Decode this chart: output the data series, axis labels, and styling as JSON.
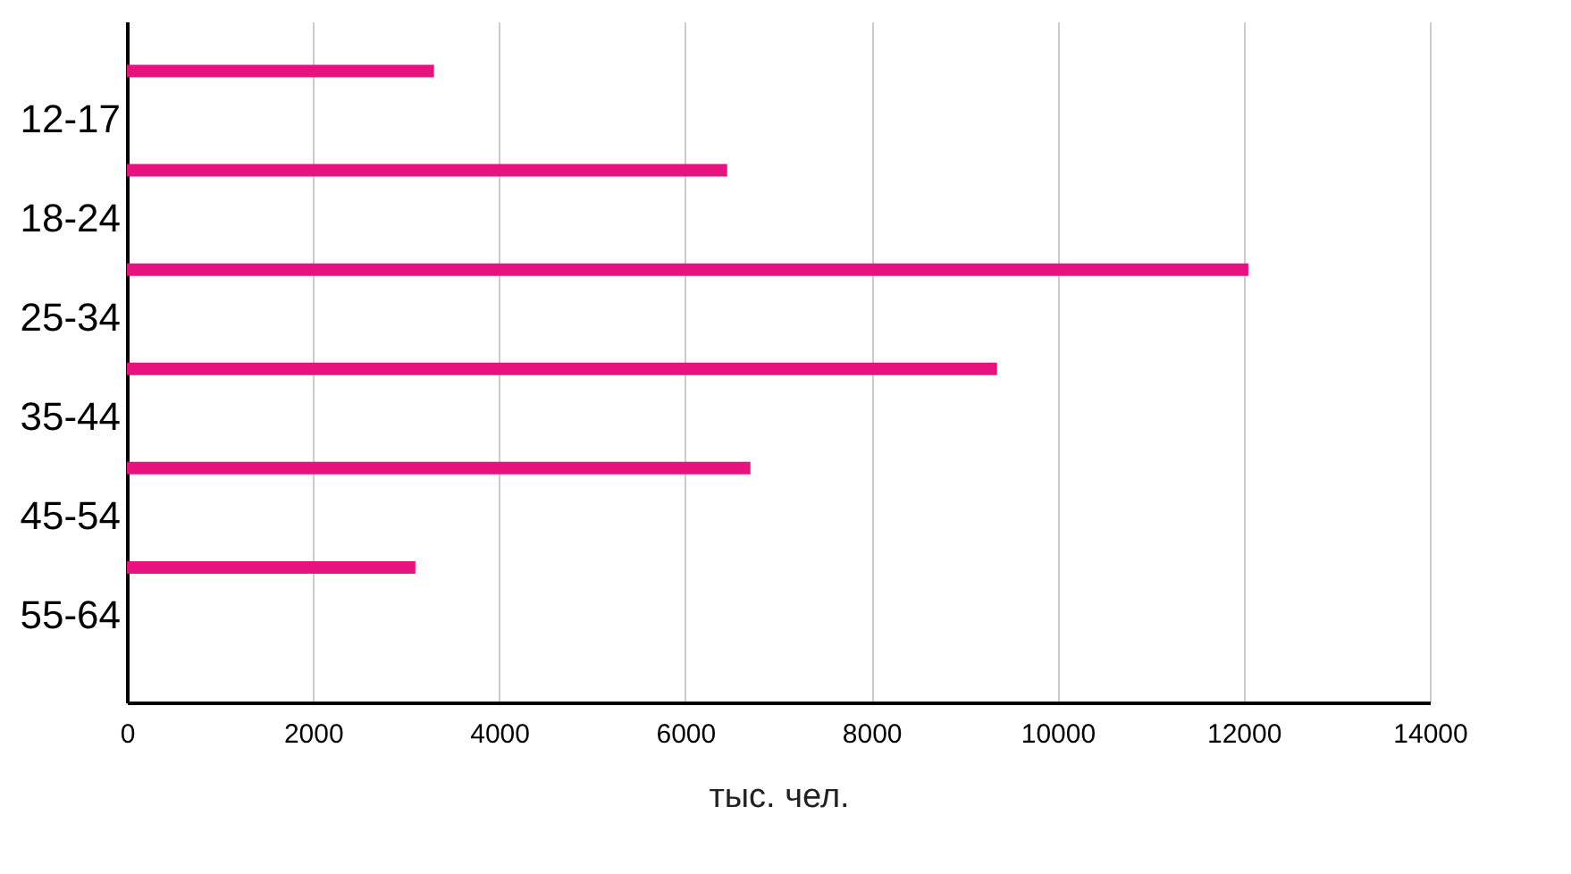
{
  "chart_data": {
    "type": "bar",
    "orientation": "horizontal",
    "xlabel": "тыс. чел.",
    "categories": [
      "12-17",
      "18-24",
      "25-34",
      "35-44",
      "45-54",
      "55-64"
    ],
    "values": [
      3300,
      6450,
      12050,
      9350,
      6700,
      3100
    ],
    "color": "#e8127f",
    "xlim": [
      0,
      14000
    ],
    "xticks": [
      0,
      2000,
      4000,
      6000,
      8000,
      10000,
      12000,
      14000
    ],
    "grid": "x"
  }
}
